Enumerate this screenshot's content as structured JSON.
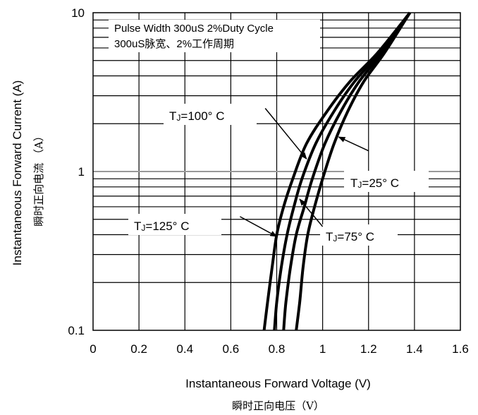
{
  "chart_data": {
    "type": "line",
    "scale": {
      "x": "linear",
      "y": "log"
    },
    "xlim": [
      0,
      1.6
    ],
    "ylim": [
      0.1,
      10
    ],
    "x_ticks": [
      "0",
      "0.2",
      "0.4",
      "0.6",
      "0.8",
      "1",
      "1.2",
      "1.4",
      "1.6"
    ],
    "y_ticks": [
      "0.1",
      "1",
      "10"
    ],
    "xlabel": "Instantaneous Forward Voltage (V)",
    "xlabel_cn": "瞬时正向电压（V）",
    "ylabel": "Instantaneous Forward Current (A)",
    "ylabel_cn": "瞬时正向电流 （A）",
    "note_line1": "Pulse Width 300uS 2%Duty Cycle",
    "note_line2": "300uS脉宽、2%工作周期",
    "grid": true,
    "series": [
      {
        "name": "TJ=125° C",
        "sub": "J",
        "pre": "T",
        "post": "=125° C",
        "points": [
          [
            0.745,
            0.1
          ],
          [
            0.76,
            0.15
          ],
          [
            0.78,
            0.25
          ],
          [
            0.8,
            0.4
          ],
          [
            0.83,
            0.6
          ],
          [
            0.87,
            0.9
          ],
          [
            0.93,
            1.5
          ],
          [
            1.02,
            2.4
          ],
          [
            1.12,
            3.7
          ],
          [
            1.24,
            5.6
          ],
          [
            1.38,
            10
          ]
        ]
      },
      {
        "name": "TJ=100° C",
        "sub": "J",
        "pre": "T",
        "post": "=100° C",
        "points": [
          [
            0.79,
            0.1
          ],
          [
            0.8,
            0.15
          ],
          [
            0.82,
            0.25
          ],
          [
            0.845,
            0.4
          ],
          [
            0.875,
            0.6
          ],
          [
            0.91,
            0.9
          ],
          [
            0.97,
            1.5
          ],
          [
            1.05,
            2.4
          ],
          [
            1.14,
            3.7
          ],
          [
            1.25,
            5.6
          ],
          [
            1.38,
            10
          ]
        ]
      },
      {
        "name": "TJ=75° C",
        "sub": "J",
        "pre": "T",
        "post": "=75° C",
        "points": [
          [
            0.83,
            0.1
          ],
          [
            0.84,
            0.15
          ],
          [
            0.86,
            0.25
          ],
          [
            0.885,
            0.4
          ],
          [
            0.92,
            0.6
          ],
          [
            0.955,
            0.9
          ],
          [
            1.01,
            1.5
          ],
          [
            1.08,
            2.4
          ],
          [
            1.16,
            3.7
          ],
          [
            1.26,
            5.6
          ],
          [
            1.38,
            10
          ]
        ]
      },
      {
        "name": "TJ=25° C",
        "sub": "J",
        "pre": "T",
        "post": "=25° C",
        "points": [
          [
            0.885,
            0.1
          ],
          [
            0.9,
            0.15
          ],
          [
            0.915,
            0.25
          ],
          [
            0.935,
            0.4
          ],
          [
            0.965,
            0.6
          ],
          [
            1.0,
            0.9
          ],
          [
            1.05,
            1.5
          ],
          [
            1.11,
            2.4
          ],
          [
            1.18,
            3.7
          ],
          [
            1.27,
            5.6
          ],
          [
            1.38,
            10
          ]
        ]
      }
    ],
    "annotations": [
      {
        "series": 1,
        "arrow_from": [
          0.75,
          2.5
        ],
        "arrow_to": [
          0.93,
          1.2
        ]
      },
      {
        "series": 3,
        "arrow_from": [
          1.2,
          1.35
        ],
        "arrow_to": [
          1.07,
          1.65
        ]
      },
      {
        "series": 0,
        "arrow_from": [
          0.64,
          0.52
        ],
        "arrow_to": [
          0.8,
          0.39
        ]
      },
      {
        "series": 2,
        "arrow_from": [
          1.0,
          0.45
        ],
        "arrow_to": [
          0.9,
          0.67
        ]
      }
    ]
  }
}
